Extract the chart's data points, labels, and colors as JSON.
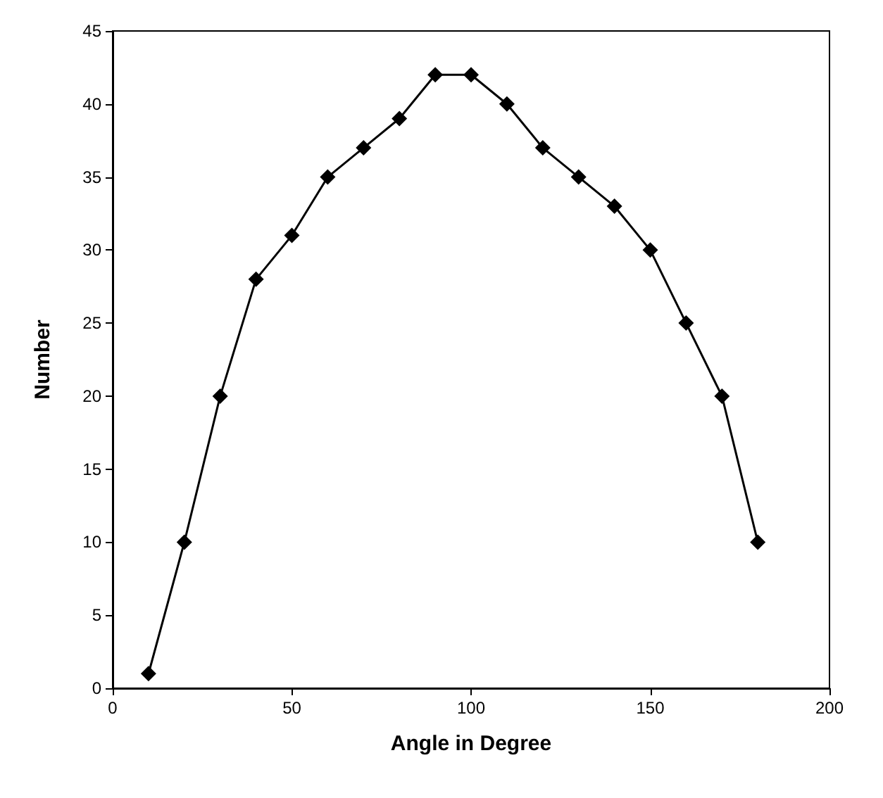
{
  "chart_data": {
    "type": "line",
    "xlabel": "Angle in Degree",
    "ylabel": "Number",
    "x": [
      10,
      20,
      30,
      40,
      50,
      60,
      70,
      80,
      90,
      100,
      110,
      120,
      130,
      140,
      150,
      160,
      170,
      180
    ],
    "series": [
      {
        "color": "#000000",
        "values": [
          1,
          10,
          20,
          28,
          31,
          35,
          37,
          39,
          42,
          42,
          40,
          37,
          35,
          33,
          30,
          25,
          20,
          10
        ]
      }
    ],
    "xlim": [
      0,
      200
    ],
    "xticks": [
      0,
      50,
      100,
      150,
      200
    ],
    "ylim": [
      0,
      45
    ],
    "yticks": [
      0,
      5,
      10,
      15,
      20,
      25,
      30,
      35,
      40,
      45
    ],
    "grid": false,
    "marker": "diamond",
    "line_style": "solid"
  }
}
